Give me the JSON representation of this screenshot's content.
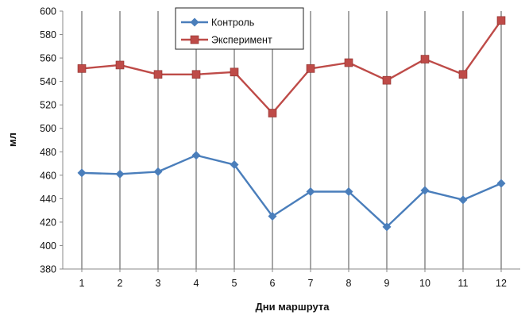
{
  "chart_data": {
    "type": "line",
    "title": "",
    "xlabel": "Дни маршрута",
    "ylabel": "мл",
    "x": [
      "1",
      "2",
      "3",
      "4",
      "5",
      "6",
      "7",
      "8",
      "9",
      "10",
      "11",
      "12"
    ],
    "ylim": [
      380,
      600
    ],
    "yticks": [
      380,
      400,
      420,
      440,
      460,
      480,
      500,
      520,
      540,
      560,
      580,
      600
    ],
    "grid": "vertical",
    "legend": "top-center",
    "series": [
      {
        "name": "Контроль",
        "color": "#4a7ebb",
        "marker": "diamond",
        "values": [
          462,
          461,
          463,
          477,
          469,
          425,
          446,
          446,
          416,
          447,
          439,
          453
        ]
      },
      {
        "name": "Эксперимент",
        "color": "#be4b48",
        "marker": "square",
        "values": [
          551,
          554,
          546,
          546,
          548,
          513,
          551,
          556,
          541,
          559,
          546,
          592
        ]
      }
    ]
  }
}
